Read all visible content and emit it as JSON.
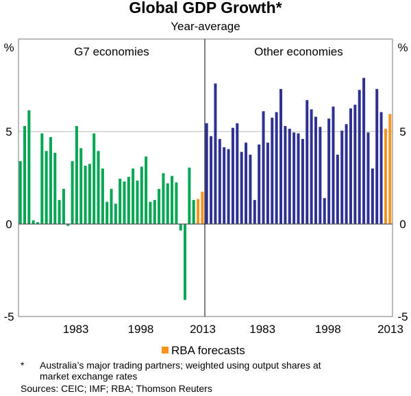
{
  "chart_data": [
    {
      "type": "bar",
      "title": "G7 economies",
      "x": [
        1971,
        1972,
        1973,
        1974,
        1975,
        1976,
        1977,
        1978,
        1979,
        1980,
        1981,
        1982,
        1983,
        1984,
        1985,
        1986,
        1987,
        1988,
        1989,
        1990,
        1991,
        1992,
        1993,
        1994,
        1995,
        1996,
        1997,
        1998,
        1999,
        2000,
        2001,
        2002,
        2003,
        2004,
        2005,
        2006,
        2007,
        2008,
        2009,
        2010,
        2011,
        2012,
        2013
      ],
      "values": [
        3.4,
        5.3,
        6.15,
        0.2,
        0.1,
        4.9,
        3.95,
        4.7,
        3.85,
        1.3,
        1.9,
        -0.1,
        3.4,
        5.3,
        4.1,
        3.15,
        3.25,
        4.9,
        3.95,
        3.0,
        1.2,
        1.9,
        1.1,
        2.45,
        2.3,
        2.55,
        3.0,
        2.35,
        3.1,
        3.65,
        1.2,
        1.3,
        1.9,
        2.75,
        2.2,
        2.6,
        2.25,
        -0.35,
        -4.1,
        3.05,
        1.3,
        1.35,
        1.75
      ],
      "forecast_from": 2012,
      "color": "#00a651",
      "xticks": [
        1983,
        1998,
        2013
      ],
      "ylim": [
        -5,
        10
      ],
      "yticks": [
        -5,
        0,
        5
      ],
      "yunit": "%",
      "grid": true
    },
    {
      "type": "bar",
      "title": "Other economies",
      "x": [
        1971,
        1972,
        1973,
        1974,
        1975,
        1976,
        1977,
        1978,
        1979,
        1980,
        1981,
        1982,
        1983,
        1984,
        1985,
        1986,
        1987,
        1988,
        1989,
        1990,
        1991,
        1992,
        1993,
        1994,
        1995,
        1996,
        1997,
        1998,
        1999,
        2000,
        2001,
        2002,
        2003,
        2004,
        2005,
        2006,
        2007,
        2008,
        2009,
        2010,
        2011,
        2012,
        2013
      ],
      "values": [
        5.45,
        4.75,
        7.6,
        4.6,
        4.15,
        4.05,
        5.2,
        5.45,
        3.9,
        4.4,
        3.75,
        1.3,
        4.3,
        6.1,
        4.4,
        5.75,
        6.05,
        7.3,
        5.3,
        5.15,
        4.95,
        4.9,
        4.6,
        6.7,
        6.2,
        5.8,
        5.25,
        1.4,
        5.7,
        6.35,
        3.75,
        5.05,
        5.4,
        6.25,
        6.45,
        7.25,
        7.9,
        4.95,
        3.0,
        7.3,
        6.05,
        5.15,
        5.95
      ],
      "forecast_from": 2012,
      "color": "#2e3192",
      "xticks": [
        1983,
        1998,
        2013
      ],
      "ylim": [
        -5,
        10
      ],
      "yticks": [
        -5,
        0,
        5
      ],
      "yunit": "%",
      "grid": true
    }
  ],
  "header": {
    "title": "Global GDP Growth*",
    "subtitle": "Year-average"
  },
  "legend": {
    "label": "RBA forecasts",
    "color": "#f7941d",
    "placement": "bottom-center"
  },
  "footnote": {
    "marker": "*",
    "text_line1": "Australia’s major trading partners; weighted using output shares at",
    "text_line2": "market exchange rates"
  },
  "sources": "Sources: CEIC; IMF; RBA; Thomson Reuters"
}
